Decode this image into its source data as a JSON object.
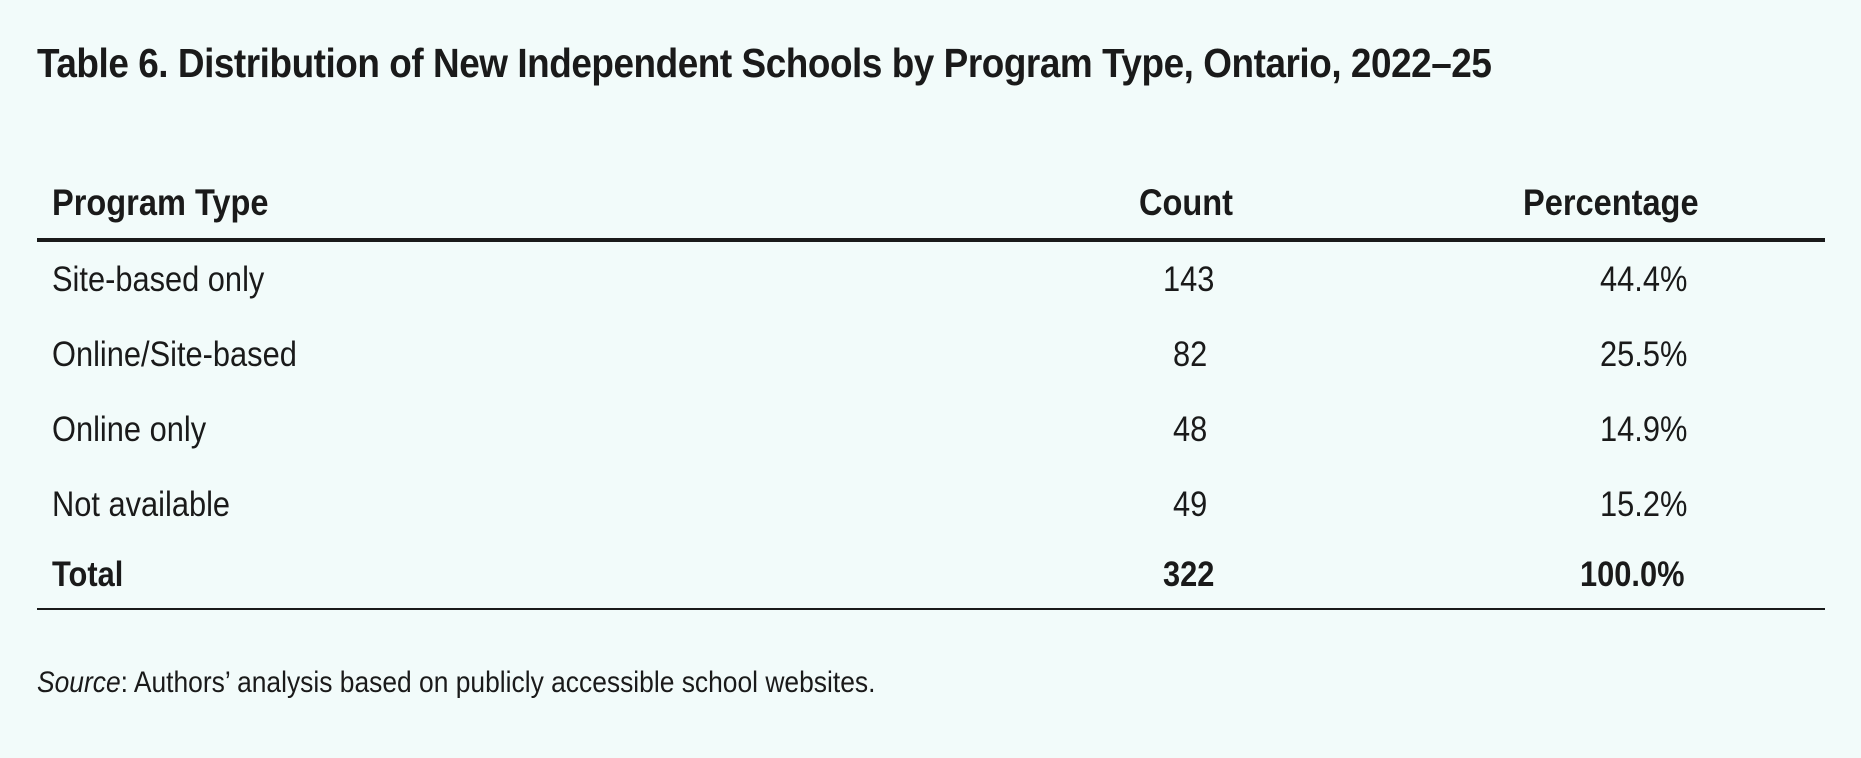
{
  "title": "Table 6. Distribution of New Independent Schools by Program Type, Ontario, 2022–25",
  "table": {
    "headers": [
      "Program Type",
      "Count",
      "Percentage"
    ],
    "rows": [
      {
        "program": "Site-based only",
        "count": "143",
        "percentage": "44.4%"
      },
      {
        "program": "Online/Site-based",
        "count": "82",
        "percentage": "25.5%"
      },
      {
        "program": "Online only",
        "count": "48",
        "percentage": "14.9%"
      },
      {
        "program": "Not available",
        "count": "49",
        "percentage": "15.2%"
      }
    ],
    "total": {
      "program": "Total",
      "count": "322",
      "percentage": "100.0%"
    }
  },
  "source": {
    "label": "Source",
    "text": ": Authors’ analysis based on publicly accessible school websites."
  }
}
